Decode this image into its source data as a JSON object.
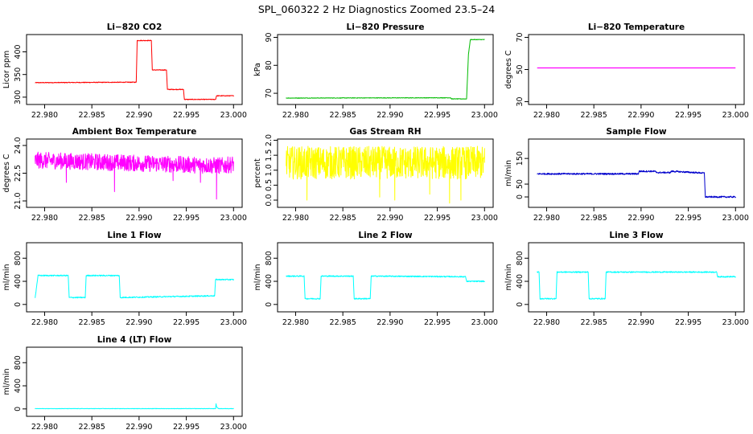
{
  "figure": {
    "title": "SPL_060322  2 Hz Diagnostics Zoomed 23.5–24"
  },
  "chart_data": [
    {
      "type": "line",
      "title": "Li−820 CO2",
      "ylabel": "Licor ppm",
      "xlim": [
        22.979,
        23.0
      ],
      "ylim": [
        290,
        432
      ],
      "xticks": [
        22.98,
        22.985,
        22.99,
        22.995,
        23.0
      ],
      "xticklabels": [
        "22.980",
        "22.985",
        "22.990",
        "22.995",
        "23.000"
      ],
      "yticks": [
        300,
        350,
        400
      ],
      "yticklabels": [
        "300",
        "350",
        "400"
      ],
      "color": "#ff0000",
      "noise": 0.8,
      "x": [
        22.979,
        22.9897,
        22.9898,
        22.9913,
        22.9914,
        22.9929,
        22.993,
        22.9947,
        22.9948,
        22.9981,
        22.9982,
        23.0
      ],
      "y": [
        332,
        333,
        425,
        425,
        360,
        360,
        317,
        317,
        295,
        295,
        303,
        303
      ]
    },
    {
      "type": "line",
      "title": "Li−820 Pressure",
      "ylabel": "kPa",
      "xlim": [
        22.979,
        23.0
      ],
      "ylim": [
        67,
        90
      ],
      "xticks": [
        22.98,
        22.985,
        22.99,
        22.995,
        23.0
      ],
      "xticklabels": [
        "22.980",
        "22.985",
        "22.990",
        "22.995",
        "23.000"
      ],
      "yticks": [
        70,
        80,
        90
      ],
      "yticklabels": [
        "70",
        "80",
        "90"
      ],
      "color": "#00bb00",
      "noise": 0.1,
      "x": [
        22.979,
        22.9964,
        22.9965,
        22.9981,
        22.9983,
        22.9985,
        23.0
      ],
      "y": [
        68.3,
        68.4,
        68.0,
        68.0,
        84.0,
        89.2,
        89.2
      ]
    },
    {
      "type": "line",
      "title": "Li−820 Temperature",
      "ylabel": "degrees C",
      "xlim": [
        22.979,
        23.0
      ],
      "ylim": [
        30,
        70
      ],
      "xticks": [
        22.98,
        22.985,
        22.99,
        22.995,
        23.0
      ],
      "xticklabels": [
        "22.980",
        "22.985",
        "22.990",
        "22.995",
        "23.000"
      ],
      "yticks": [
        30,
        50,
        70
      ],
      "yticklabels": [
        "30",
        "50",
        "70"
      ],
      "color": "#ff00ff",
      "noise": 0,
      "x": [
        22.979,
        23.0
      ],
      "y": [
        51,
        51
      ]
    },
    {
      "type": "line",
      "title": "Ambient Box Temperature",
      "ylabel": "degrees C",
      "xlim": [
        22.979,
        23.0
      ],
      "ylim": [
        20.8,
        24.2
      ],
      "xticks": [
        22.98,
        22.985,
        22.99,
        22.995,
        23.0
      ],
      "xticklabels": [
        "22.980",
        "22.985",
        "22.990",
        "22.995",
        "23.000"
      ],
      "yticks": [
        21.0,
        22.5,
        24.0
      ],
      "yticklabels": [
        "21.0",
        "22.5",
        "24.0"
      ],
      "color": "#ff00ff",
      "noise": 0.45,
      "spikes": [
        [
          22.9823,
          22.0
        ],
        [
          22.9874,
          21.5
        ],
        [
          22.9936,
          22.1
        ],
        [
          22.9965,
          22.0
        ],
        [
          22.9982,
          21.1
        ]
      ],
      "x": [
        22.979,
        22.986,
        22.999,
        23.0
      ],
      "y": [
        23.2,
        23.1,
        22.9,
        23.0
      ]
    },
    {
      "type": "line",
      "title": "Gas Stream RH",
      "ylabel": "percent",
      "xlim": [
        22.979,
        23.0
      ],
      "ylim": [
        -0.15,
        1.95
      ],
      "xticks": [
        22.98,
        22.985,
        22.99,
        22.995,
        23.0
      ],
      "xticklabels": [
        "22.980",
        "22.985",
        "22.990",
        "22.995",
        "23.000"
      ],
      "yticks": [
        0.0,
        0.5,
        1.0,
        1.5,
        2.0
      ],
      "yticklabels": [
        "0.0",
        "0.5",
        "1.0",
        "1.5",
        "2.0"
      ],
      "color": "#ffff00",
      "noise": 0.55,
      "spikes": [
        [
          22.9812,
          0.0
        ],
        [
          22.9889,
          0.1
        ],
        [
          22.9905,
          0.0
        ],
        [
          22.9942,
          0.2
        ],
        [
          22.9963,
          -0.1
        ],
        [
          22.9975,
          0.0
        ]
      ],
      "x": [
        22.979,
        23.0
      ],
      "y": [
        1.25,
        1.25
      ]
    },
    {
      "type": "line",
      "title": "Sample Flow",
      "ylabel": "ml/min",
      "xlim": [
        22.979,
        23.0
      ],
      "ylim": [
        -30,
        215
      ],
      "xticks": [
        22.98,
        22.985,
        22.99,
        22.995,
        23.0
      ],
      "xticklabels": [
        "22.980",
        "22.985",
        "22.990",
        "22.995",
        "23.000"
      ],
      "yticks": [
        0,
        50,
        150
      ],
      "yticklabels": [
        "0",
        "50",
        "150"
      ],
      "color": "#0000cc",
      "noise": 3,
      "x": [
        22.979,
        22.9897,
        22.9898,
        22.9915,
        22.9916,
        22.9931,
        22.9932,
        22.9967,
        22.9968,
        23.0
      ],
      "y": [
        90,
        90,
        100,
        100,
        95,
        95,
        100,
        93,
        0,
        0
      ]
    },
    {
      "type": "line",
      "title": "Line 1 Flow",
      "ylabel": "ml/min",
      "xlim": [
        22.979,
        23.0
      ],
      "ylim": [
        -80,
        1020
      ],
      "xticks": [
        22.98,
        22.985,
        22.99,
        22.995,
        23.0
      ],
      "xticklabels": [
        "22.980",
        "22.985",
        "22.990",
        "22.995",
        "23.000"
      ],
      "yticks": [
        0,
        400,
        800
      ],
      "yticklabels": [
        "0",
        "400",
        "800"
      ],
      "color": "#00ffff",
      "noise": 10,
      "x": [
        22.979,
        22.9793,
        22.9825,
        22.9826,
        22.9843,
        22.9844,
        22.9879,
        22.988,
        22.998,
        22.9981,
        23.0
      ],
      "y": [
        120,
        500,
        500,
        120,
        120,
        500,
        500,
        120,
        150,
        430,
        430
      ]
    },
    {
      "type": "line",
      "title": "Line 2 Flow",
      "ylabel": "ml/min",
      "xlim": [
        22.979,
        23.0
      ],
      "ylim": [
        -80,
        1020
      ],
      "xticks": [
        22.98,
        22.985,
        22.99,
        22.995,
        23.0
      ],
      "xticklabels": [
        "22.980",
        "22.985",
        "22.990",
        "22.995",
        "23.000"
      ],
      "yticks": [
        0,
        400,
        800
      ],
      "yticklabels": [
        "0",
        "400",
        "800"
      ],
      "color": "#00ffff",
      "noise": 10,
      "x": [
        22.979,
        22.9809,
        22.981,
        22.9826,
        22.9827,
        22.9861,
        22.9862,
        22.9879,
        22.988,
        22.998,
        22.9981,
        23.0
      ],
      "y": [
        490,
        490,
        100,
        100,
        490,
        490,
        100,
        100,
        490,
        480,
        400,
        400
      ]
    },
    {
      "type": "line",
      "title": "Line 3 Flow",
      "ylabel": "ml/min",
      "xlim": [
        22.979,
        23.0
      ],
      "ylim": [
        -80,
        1020
      ],
      "xticks": [
        22.98,
        22.985,
        22.99,
        22.995,
        23.0
      ],
      "xticklabels": [
        "22.980",
        "22.985",
        "22.990",
        "22.995",
        "23.000"
      ],
      "yticks": [
        0,
        400,
        800
      ],
      "yticklabels": [
        "0",
        "400",
        "800"
      ],
      "color": "#00ffff",
      "noise": 10,
      "x": [
        22.979,
        22.9792,
        22.9793,
        22.981,
        22.9811,
        22.9844,
        22.9845,
        22.9862,
        22.9863,
        22.998,
        22.9981,
        23.0
      ],
      "y": [
        560,
        560,
        100,
        100,
        560,
        560,
        100,
        100,
        560,
        560,
        480,
        480
      ]
    },
    {
      "type": "line",
      "title": "Line 4 (LT) Flow",
      "ylabel": "ml/min",
      "xlim": [
        22.979,
        23.0
      ],
      "ylim": [
        -80,
        1020
      ],
      "xticks": [
        22.98,
        22.985,
        22.99,
        22.995,
        23.0
      ],
      "xticklabels": [
        "22.980",
        "22.985",
        "22.990",
        "22.995",
        "23.000"
      ],
      "yticks": [
        0,
        400,
        800
      ],
      "yticklabels": [
        "0",
        "400",
        "800"
      ],
      "color": "#00ffff",
      "noise": 3,
      "x": [
        22.979,
        22.9981,
        22.99815,
        22.9982,
        22.9984,
        23.0
      ],
      "y": [
        5,
        5,
        90,
        40,
        5,
        5
      ]
    }
  ]
}
